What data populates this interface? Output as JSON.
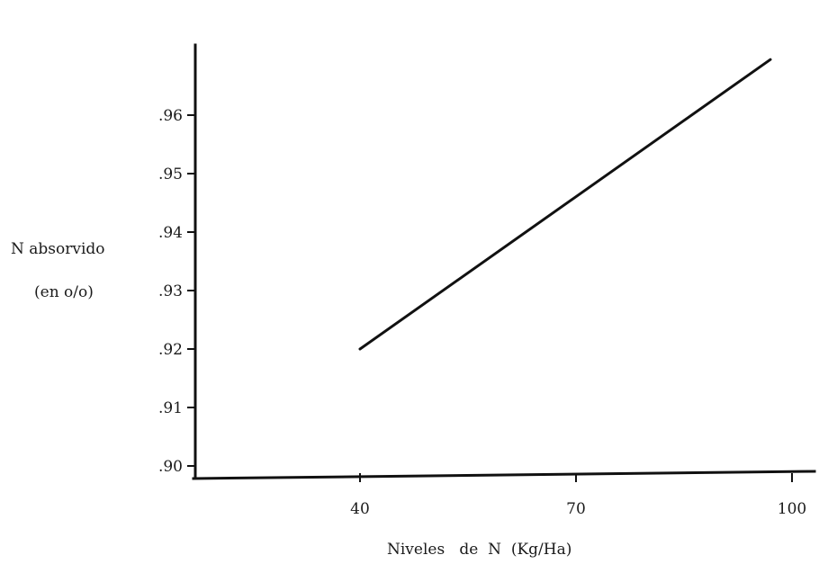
{
  "chart_data": {
    "type": "line",
    "xlabel": "Niveles   de  N  (Kg/Ha)",
    "ylabel": [
      "N absorvido",
      "(en o/o)"
    ],
    "x_ticks": [
      {
        "value": 40,
        "label": "40"
      },
      {
        "value": 70,
        "label": "70"
      },
      {
        "value": 100,
        "label": "100"
      }
    ],
    "y_ticks": [
      {
        "value": 0.9,
        "label": ".90"
      },
      {
        "value": 0.91,
        "label": ".91"
      },
      {
        "value": 0.92,
        "label": ".92"
      },
      {
        "value": 0.93,
        "label": ".93"
      },
      {
        "value": 0.94,
        "label": ".94"
      },
      {
        "value": 0.95,
        "label": ".95"
      },
      {
        "value": 0.96,
        "label": ".96"
      }
    ],
    "xlim": [
      10,
      103
    ],
    "ylim": [
      0.8985,
      0.9715
    ],
    "series": [
      {
        "x": [
          40,
          97
        ],
        "y": [
          0.92,
          0.9695
        ]
      }
    ],
    "grid": false,
    "legend": "none"
  }
}
